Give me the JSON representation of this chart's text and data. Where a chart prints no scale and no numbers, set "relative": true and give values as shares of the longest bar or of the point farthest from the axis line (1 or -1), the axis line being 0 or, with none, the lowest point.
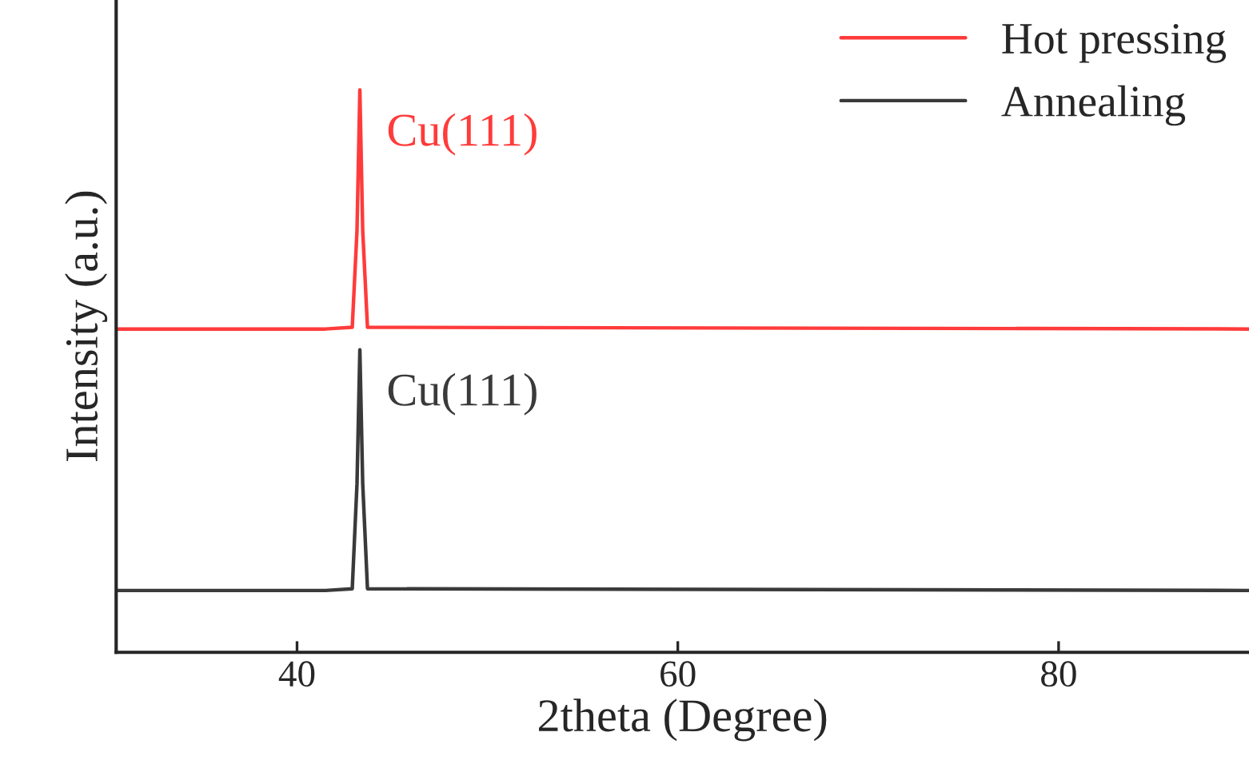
{
  "chart_data": {
    "type": "line",
    "relative": true,
    "xlabel": "2theta (Degree)",
    "ylabel": "Intensity (a.u.)",
    "xlim": [
      30.5,
      90
    ],
    "xticks": [
      40,
      60,
      80
    ],
    "legend": "top right",
    "grid": false,
    "marker": "none",
    "line_style": "solid",
    "series": [
      {
        "name": "Hot pressing",
        "color": "#ff3b3b",
        "x": [
          30.5,
          41.5,
          42.9,
          43.15,
          43.3,
          43.45,
          43.7,
          90
        ],
        "values": [
          0.575,
          0.575,
          0.578,
          0.75,
          1.0,
          0.75,
          0.578,
          0.575
        ]
      },
      {
        "name": "Annealing",
        "color": "#3a3a3a",
        "x": [
          30.5,
          41.5,
          42.9,
          43.15,
          43.3,
          43.45,
          43.7,
          90
        ],
        "values": [
          0.11,
          0.11,
          0.113,
          0.3,
          0.538,
          0.3,
          0.113,
          0.11
        ]
      }
    ],
    "annotations": [
      {
        "text": "Cu(111)",
        "x": 43.3,
        "y": 1.0
      },
      {
        "text": "Cu(111)",
        "x": 43.3,
        "y": 0.538
      }
    ]
  }
}
